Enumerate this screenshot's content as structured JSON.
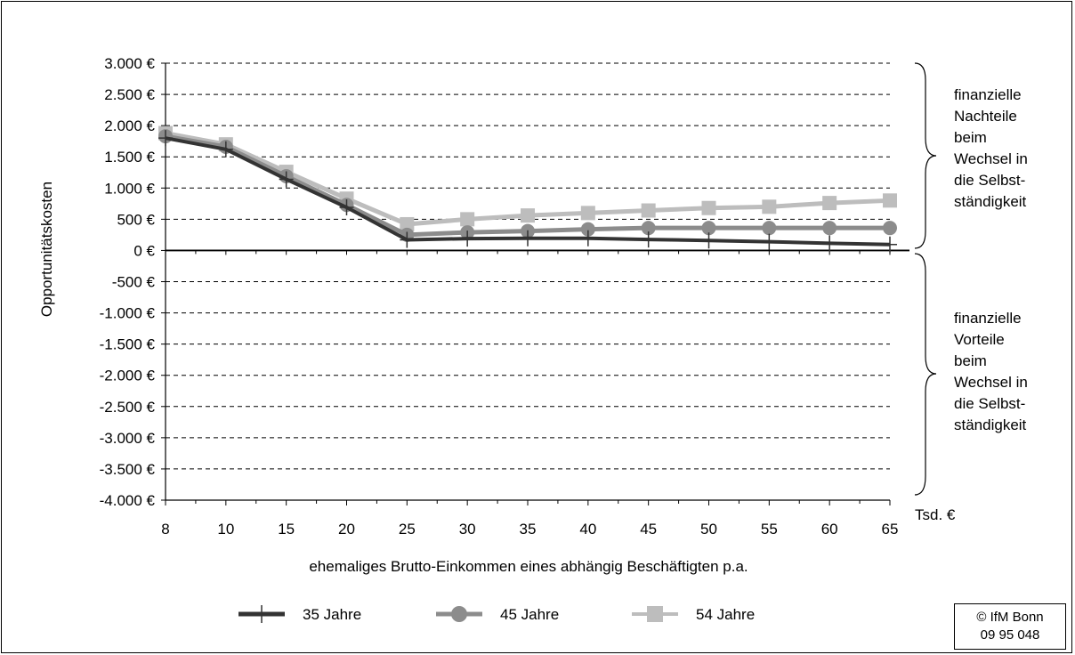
{
  "chart_data": {
    "type": "line",
    "xlabel": "ehemaliges Brutto-Einkommen eines abhängig Beschäftigten p.a.",
    "ylabel": "Opportunitätskosten",
    "x_unit": "Tsd. €",
    "categories": [
      8,
      10,
      15,
      20,
      25,
      30,
      35,
      40,
      45,
      50,
      55,
      60,
      65
    ],
    "y_ticks": [
      3000,
      2500,
      2000,
      1500,
      1000,
      500,
      0,
      -500,
      -1000,
      -1500,
      -2000,
      -2500,
      -3000,
      -3500,
      -4000
    ],
    "y_tick_labels": [
      "3.000 €",
      "2.500 €",
      "2.000 €",
      "1.500 €",
      "1.000 €",
      "500 €",
      "0 €",
      "-500 €",
      "-1.000 €",
      "-1.500 €",
      "-2.000 €",
      "-2.500 €",
      "-3.000 €",
      "-3.500 €",
      "-4.000 €"
    ],
    "ylim": [
      -4000,
      3000
    ],
    "grid": "horizontal dashed",
    "legend_position": "bottom",
    "series": [
      {
        "name": "35 Jahre",
        "marker": "plus",
        "color": "#333333",
        "values": [
          1800,
          1620,
          1140,
          690,
          170,
          190,
          195,
          195,
          175,
          160,
          140,
          115,
          95
        ]
      },
      {
        "name": "45 Jahre",
        "marker": "circle",
        "color": "#8c8c8c",
        "values": [
          1830,
          1660,
          1190,
          730,
          250,
          290,
          310,
          340,
          360,
          360,
          360,
          360,
          360
        ]
      },
      {
        "name": "54 Jahre",
        "marker": "square",
        "color": "#bdbdbd",
        "values": [
          1880,
          1700,
          1260,
          830,
          420,
          500,
          560,
          600,
          640,
          680,
          700,
          760,
          800
        ]
      }
    ]
  },
  "annotations": {
    "upper_note": [
      "finanzielle",
      "Nachteile",
      "beim",
      "Wechsel in",
      "die Selbst-",
      "ständigkeit"
    ],
    "lower_note": [
      "finanzielle",
      "Vorteile",
      "beim",
      "Wechsel in",
      "die Selbst-",
      "ständigkeit"
    ]
  },
  "source": {
    "line1": "© IfM Bonn",
    "line2": "09 95 048"
  }
}
